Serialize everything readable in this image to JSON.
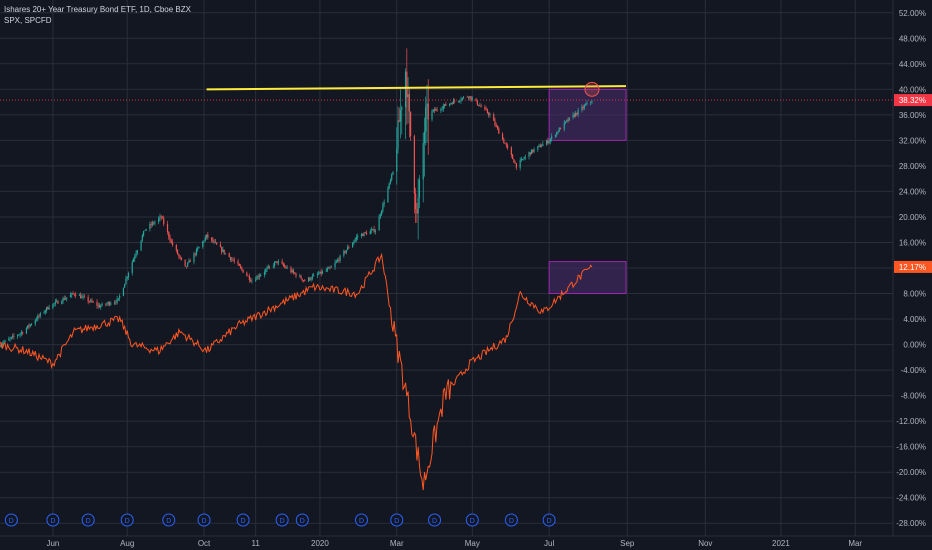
{
  "legend": {
    "main_series": "Ishares 20+ Year Treasury Bond ETF, 1D, Cboe BZX",
    "compare_series": "SPX, SPCFD"
  },
  "colors": {
    "background": "#131722",
    "grid": "#2a2e39",
    "candle_up": "#26a69a",
    "candle_down": "#ef5350",
    "compare_line": "#ff5722",
    "trendline": "#ffeb3b",
    "box_fill": "#4a2d6e",
    "box_stroke": "#9c27b0",
    "price_line": "#f23645",
    "dividend_icon": "#2962ff"
  },
  "icons": {
    "dividend_marker": "D",
    "dividend_marker_name": "dividend-circle-icon"
  },
  "chart_data": {
    "type": "line",
    "y_unit": "percent",
    "ylim": [
      -30,
      54
    ],
    "yticks": [
      "52.00%",
      "48.00%",
      "44.00%",
      "40.00%",
      "36.00%",
      "32.00%",
      "28.00%",
      "24.00%",
      "20.00%",
      "16.00%",
      "12.00%",
      "8.00%",
      "4.00%",
      "0.00%",
      "-4.00%",
      "-8.00%",
      "-12.00%",
      "-16.00%",
      "-20.00%",
      "-24.00%",
      "-28.00%"
    ],
    "ytick_values": [
      52,
      48,
      44,
      40,
      36,
      32,
      28,
      24,
      20,
      16,
      12,
      8,
      4,
      0,
      -4,
      -8,
      -12,
      -16,
      -20,
      -24,
      -28
    ],
    "x_start": "2019-04-22",
    "x_end": "2021-03-31",
    "xticks": [
      {
        "label": "Jun",
        "date": "2019-06-03"
      },
      {
        "label": "Aug",
        "date": "2019-08-01"
      },
      {
        "label": "Oct",
        "date": "2019-10-01"
      },
      {
        "label": "11",
        "date": "2019-11-11"
      },
      {
        "label": "2020",
        "date": "2020-01-01"
      },
      {
        "label": "Mar",
        "date": "2020-03-02"
      },
      {
        "label": "May",
        "date": "2020-05-01"
      },
      {
        "label": "Jul",
        "date": "2020-07-01"
      },
      {
        "label": "Sep",
        "date": "2020-09-01"
      },
      {
        "label": "Nov",
        "date": "2020-11-02"
      },
      {
        "label": "2021",
        "date": "2021-01-01"
      },
      {
        "label": "Mar",
        "date": "2021-03-01"
      }
    ],
    "series": [
      {
        "name": "Ishares 20+ Year Treasury Bond ETF, 1D, Cboe BZX",
        "style": "candles",
        "last_value_label": "38.32%",
        "points": [
          {
            "x": "2019-04-22",
            "y": 0
          },
          {
            "x": "2019-05-10",
            "y": 2
          },
          {
            "x": "2019-05-31",
            "y": 6
          },
          {
            "x": "2019-06-20",
            "y": 8
          },
          {
            "x": "2019-07-10",
            "y": 6
          },
          {
            "x": "2019-07-25",
            "y": 7
          },
          {
            "x": "2019-08-05",
            "y": 13
          },
          {
            "x": "2019-08-15",
            "y": 18
          },
          {
            "x": "2019-08-28",
            "y": 20
          },
          {
            "x": "2019-09-05",
            "y": 16
          },
          {
            "x": "2019-09-16",
            "y": 12
          },
          {
            "x": "2019-10-03",
            "y": 17
          },
          {
            "x": "2019-10-25",
            "y": 13
          },
          {
            "x": "2019-11-08",
            "y": 10
          },
          {
            "x": "2019-11-28",
            "y": 13
          },
          {
            "x": "2019-12-20",
            "y": 10
          },
          {
            "x": "2020-01-10",
            "y": 12
          },
          {
            "x": "2020-01-31",
            "y": 17
          },
          {
            "x": "2020-02-14",
            "y": 18
          },
          {
            "x": "2020-02-28",
            "y": 27
          },
          {
            "x": "2020-03-09",
            "y": 43
          },
          {
            "x": "2020-03-18",
            "y": 20
          },
          {
            "x": "2020-03-25",
            "y": 36
          },
          {
            "x": "2020-04-15",
            "y": 38
          },
          {
            "x": "2020-04-28",
            "y": 39
          },
          {
            "x": "2020-05-15",
            "y": 36
          },
          {
            "x": "2020-06-05",
            "y": 28
          },
          {
            "x": "2020-06-15",
            "y": 30
          },
          {
            "x": "2020-07-01",
            "y": 32
          },
          {
            "x": "2020-07-15",
            "y": 35
          },
          {
            "x": "2020-08-04",
            "y": 38.32
          }
        ]
      },
      {
        "name": "SPX, SPCFD",
        "style": "line",
        "last_value_label": "12.17%",
        "points": [
          {
            "x": "2019-04-22",
            "y": 0
          },
          {
            "x": "2019-05-13",
            "y": -1
          },
          {
            "x": "2019-06-03",
            "y": -3
          },
          {
            "x": "2019-06-20",
            "y": 2
          },
          {
            "x": "2019-07-26",
            "y": 4
          },
          {
            "x": "2019-08-05",
            "y": 0
          },
          {
            "x": "2019-08-26",
            "y": -1
          },
          {
            "x": "2019-09-12",
            "y": 2
          },
          {
            "x": "2019-10-03",
            "y": -1
          },
          {
            "x": "2019-10-28",
            "y": 3
          },
          {
            "x": "2019-11-27",
            "y": 6
          },
          {
            "x": "2019-12-27",
            "y": 9
          },
          {
            "x": "2020-01-31",
            "y": 8
          },
          {
            "x": "2020-02-19",
            "y": 14
          },
          {
            "x": "2020-02-28",
            "y": 3
          },
          {
            "x": "2020-03-12",
            "y": -10
          },
          {
            "x": "2020-03-23",
            "y": -22
          },
          {
            "x": "2020-04-09",
            "y": -8
          },
          {
            "x": "2020-04-29",
            "y": -3
          },
          {
            "x": "2020-05-28",
            "y": 1
          },
          {
            "x": "2020-06-08",
            "y": 8
          },
          {
            "x": "2020-06-26",
            "y": 5
          },
          {
            "x": "2020-07-22",
            "y": 10
          },
          {
            "x": "2020-08-04",
            "y": 12.17
          }
        ]
      }
    ],
    "annotations": [
      {
        "kind": "trendline",
        "from": {
          "x": "2019-10-03",
          "y": 40
        },
        "to": {
          "x": "2020-08-31",
          "y": 40.5
        }
      },
      {
        "kind": "box",
        "x0": "2020-07-01",
        "x1": "2020-08-31",
        "y0": 32,
        "y1": 40
      },
      {
        "kind": "box",
        "x0": "2020-07-01",
        "x1": "2020-08-31",
        "y0": 8,
        "y1": 13
      },
      {
        "kind": "circle",
        "x": "2020-08-04",
        "y": 40
      },
      {
        "kind": "horizontal_price_line",
        "y": 38.32
      }
    ],
    "dividend_dates": [
      "2019-05-01",
      "2019-06-03",
      "2019-07-01",
      "2019-08-01",
      "2019-09-03",
      "2019-10-01",
      "2019-11-01",
      "2019-12-02",
      "2019-12-18",
      "2020-02-03",
      "2020-03-02",
      "2020-04-01",
      "2020-05-01",
      "2020-06-01",
      "2020-07-01"
    ],
    "grid": true
  }
}
